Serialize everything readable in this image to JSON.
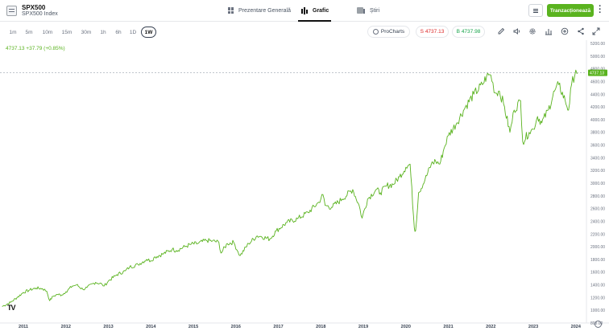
{
  "instrument": {
    "symbol": "SPX500",
    "name": "SPX500 Index"
  },
  "tabs": [
    {
      "label": "Prezentare Generală",
      "icon": "grid-icon"
    },
    {
      "label": "Grafic",
      "icon": "candlestick-icon"
    },
    {
      "label": "Știri",
      "icon": "news-icon"
    }
  ],
  "actions": {
    "trade_label": "Tranzacționează"
  },
  "timeframes": [
    "1m",
    "5m",
    "10m",
    "15m",
    "30m",
    "1h",
    "6h",
    "1D",
    "1W"
  ],
  "active_timeframe": "1W",
  "toolbar": {
    "prochart_label": "ProCharts",
    "sell_label": "S 4737.13",
    "buy_label": "B 4737.98",
    "tools": [
      "pencil-icon",
      "sound-icon",
      "gear-icon",
      "bars-icon",
      "plus-circle-icon",
      "share-icon",
      "expand-icon"
    ]
  },
  "readout": "4737.13 +37.79 (+0.85%)",
  "price_label": "4737.13",
  "colors": {
    "line": "#5ab31f",
    "accent": "#5ab31f",
    "sell": "#dc2626",
    "buy": "#16a34a"
  },
  "chart_data": {
    "type": "line",
    "ylim": [
      800,
      5200
    ],
    "yticks": [
      "5200.00",
      "5000.00",
      "4800.00",
      "4600.00",
      "4400.00",
      "4200.00",
      "4000.00",
      "3800.00",
      "3600.00",
      "3400.00",
      "3200.00",
      "3000.00",
      "2800.00",
      "2600.00",
      "2400.00",
      "2200.00",
      "2000.00",
      "1800.00",
      "1600.00",
      "1400.00",
      "1200.00",
      "1000.00",
      "800.00"
    ],
    "xticks": [
      "2011",
      "2012",
      "2013",
      "2014",
      "2015",
      "2016",
      "2017",
      "2018",
      "2019",
      "2020",
      "2021",
      "2022",
      "2023",
      "2024"
    ],
    "xlim": [
      2010.45,
      2024.25
    ],
    "last_value": 4737.13,
    "series": [
      {
        "x": [
          2010.5,
          2010.7,
          2010.85,
          2011.0,
          2011.15,
          2011.3,
          2011.45,
          2011.55,
          2011.62,
          2011.7,
          2011.8,
          2011.9,
          2012.0,
          2012.15,
          2012.25,
          2012.4,
          2012.5,
          2012.7,
          2012.85,
          2012.9,
          2013.0,
          2013.2,
          2013.4,
          2013.5,
          2013.7,
          2013.9,
          2014.0,
          2014.1,
          2014.3,
          2014.5,
          2014.6,
          2014.8,
          2014.95,
          2015.1,
          2015.3,
          2015.45,
          2015.6,
          2015.65,
          2015.8,
          2015.95,
          2016.05,
          2016.1,
          2016.3,
          2016.5,
          2016.6,
          2016.8,
          2016.95,
          2017.2,
          2017.45,
          2017.7,
          2017.95,
          2018.05,
          2018.1,
          2018.25,
          2018.5,
          2018.75,
          2018.9,
          2018.97,
          2019.1,
          2019.3,
          2019.4,
          2019.55,
          2019.7,
          2019.85,
          2020.0,
          2020.1,
          2020.2,
          2020.23,
          2020.3,
          2020.45,
          2020.6,
          2020.7,
          2020.8,
          2020.9,
          2021.0,
          2021.2,
          2021.4,
          2021.6,
          2021.8,
          2021.9,
          2022.0,
          2022.1,
          2022.2,
          2022.3,
          2022.45,
          2022.55,
          2022.7,
          2022.75,
          2022.9,
          2023.0,
          2023.1,
          2023.2,
          2023.35,
          2023.5,
          2023.6,
          2023.75,
          2023.83,
          2023.9,
          2024.0,
          2024.05
        ],
        "y": [
          1060,
          1125,
          1200,
          1280,
          1320,
          1350,
          1340,
          1300,
          1150,
          1220,
          1250,
          1240,
          1290,
          1380,
          1400,
          1330,
          1360,
          1440,
          1410,
          1380,
          1460,
          1560,
          1620,
          1680,
          1720,
          1800,
          1780,
          1840,
          1890,
          1960,
          1940,
          2000,
          2040,
          2050,
          2100,
          2090,
          2070,
          1900,
          2050,
          2070,
          1920,
          1860,
          2050,
          2170,
          2160,
          2120,
          2250,
          2380,
          2440,
          2540,
          2700,
          2820,
          2650,
          2620,
          2750,
          2900,
          2650,
          2450,
          2750,
          2900,
          2850,
          2960,
          2980,
          3100,
          3250,
          3300,
          2300,
          2250,
          2850,
          3050,
          3300,
          3350,
          3300,
          3550,
          3750,
          3950,
          4200,
          4400,
          4550,
          4680,
          4700,
          4420,
          4450,
          4250,
          3800,
          4150,
          4300,
          3650,
          3800,
          3850,
          4050,
          3950,
          4150,
          4450,
          4550,
          4300,
          4150,
          4550,
          4780,
          4737
        ]
      }
    ]
  }
}
